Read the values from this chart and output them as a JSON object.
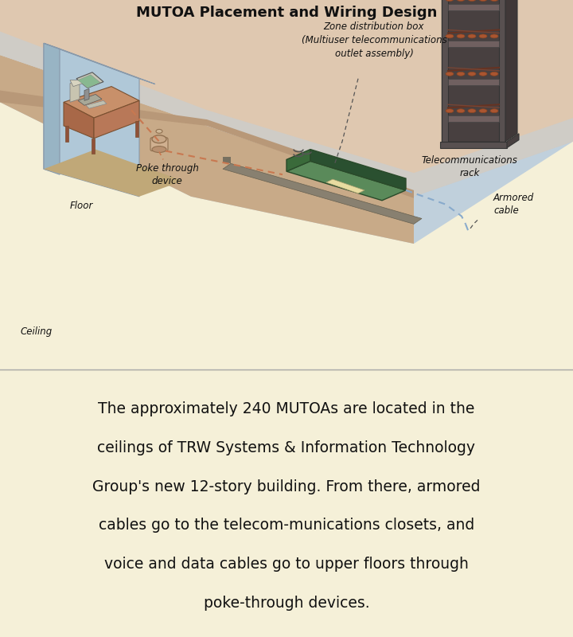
{
  "title": "MUTOA Placement and Wiring Design",
  "title_fontsize": 13,
  "bg_diagram": "#d4b896",
  "bg_text": "#f5f0d8",
  "text_color": "#111111",
  "body_text_lines": [
    "The approximately 240 MUTOAs are located in the",
    "ceilings of TRW Systems & Information Technology",
    "Group's new 12-story building. From there, armored",
    "cables go to the telecom-munications closets, and",
    "voice and data cables go to upper floors through",
    "poke-through devices."
  ],
  "body_fontsize": 13.5,
  "label_fontsize": 8.5,
  "ceiling_color": "#c0d0dc",
  "floor_upper_color": "#c8aa88",
  "floor_lower_color": "#dfc8b0",
  "wall_blue": "#b0c8d8",
  "wall_side": "#98b4c4",
  "wall_top_face": "#d0dce4",
  "desk_top": "#c8906a",
  "desk_front": "#a86848",
  "desk_side": "#b87858",
  "monitor_body": "#c8c8b8",
  "monitor_screen": "#88b890",
  "mutoa_top": "#5a8a5a",
  "mutoa_front": "#3a6a3a",
  "mutoa_side": "#2a5030",
  "sticker_color": "#e8dca0",
  "rack_frame": "#555555",
  "rack_dark": "#383838",
  "rack_shelf": "#8a7a6a",
  "cable_color": "#c87850",
  "armored_cable_color": "#88aacc",
  "annotation_color": "#555555",
  "diagram_border": "#aaaaaa"
}
